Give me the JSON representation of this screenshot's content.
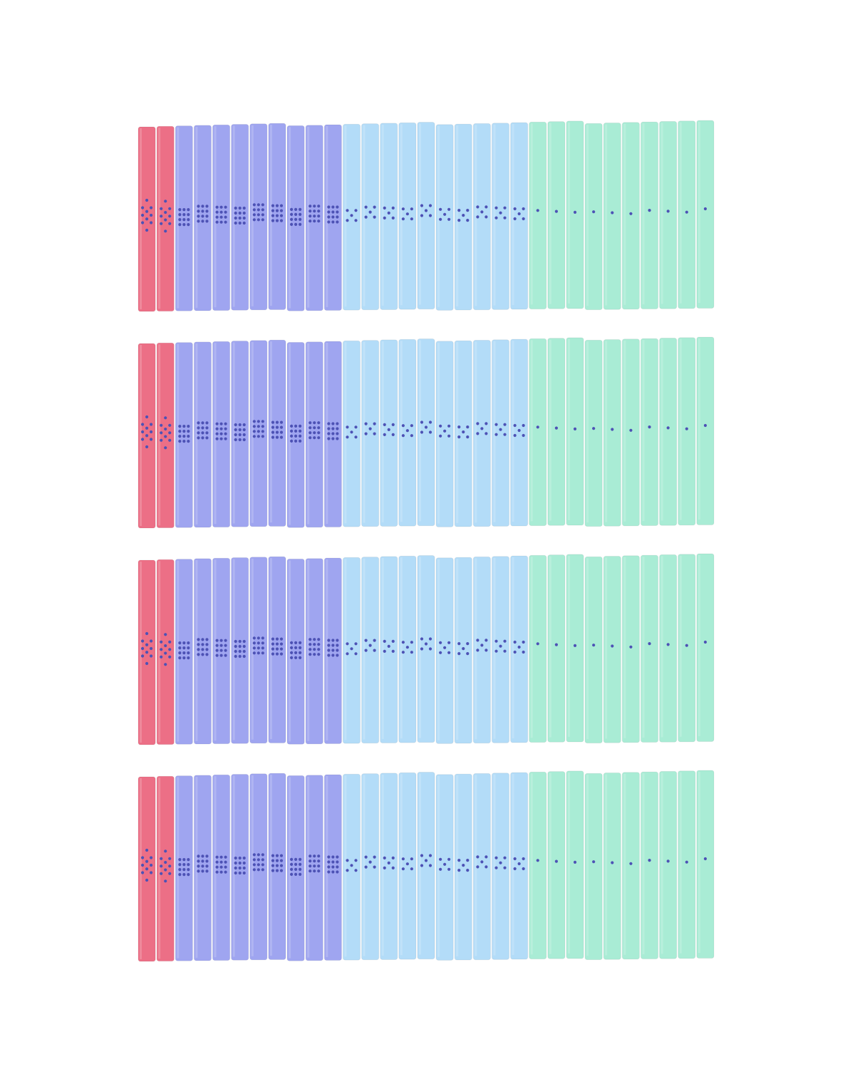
{
  "rows": 4,
  "groups": [
    {
      "color": "#ec6f86",
      "sticks": 2,
      "dots": 10
    },
    {
      "color": "#9fa5f0",
      "sticks": 9,
      "dots": 12
    },
    {
      "color": "#b3dcf8",
      "sticks": 10,
      "dots": 5
    },
    {
      "color": "#a9ecd5",
      "sticks": 10,
      "dots": 1
    }
  ]
}
